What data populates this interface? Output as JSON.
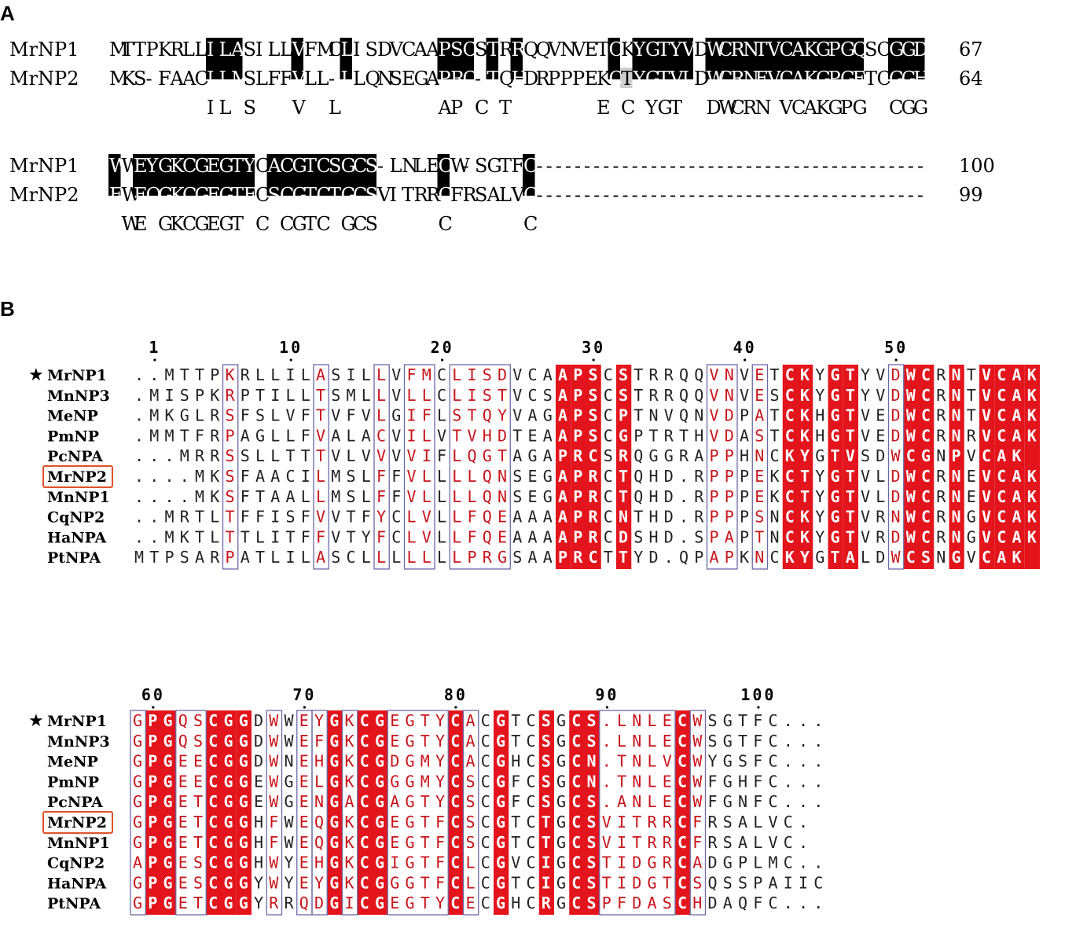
{
  "panel_a": {
    "label": "A",
    "blocks": [
      {
        "rows": [
          {
            "name": "MrNP1",
            "seq": "MTTPKRLLILASILLVFMCLISDVCAAPSCSTRRQQVNVETCKYGTYVDWCRNTVCAKGPGQSCGGD",
            "end": "67"
          },
          {
            "name": "MrNP2",
            "seq": "MKS-FAACILMSLFFVLL-LLQNSEGAPRC-TQHDRPPPEKCTYGTVLDWCRNEVCAKGPGETCGGH",
            "end": "64"
          }
        ],
        "consensus": "        IL S   V  L        AP C T       E C YGT  DWCRN VCAKGPG  CGG "
      },
      {
        "rows": [
          {
            "name": "MrNP1",
            "seq": "WWEYGKCGEGTYCACGTCSGCS-LNLECW-SGTFC",
            "tail": "-----------------------------------------",
            "end": "100"
          },
          {
            "name": "MrNP2",
            "seq": "FWEQGKCGEGTFCSCGTCTGCSVITRRCFRSALVC",
            "tail": "-----------------------------------------",
            "end": "99"
          }
        ],
        "consensus": " WE GKCGEGT C CGTC GCS     C      C"
      }
    ]
  },
  "panel_b": {
    "label": "B",
    "star": "★",
    "highlighted": "MrNP2",
    "blocks": [
      {
        "ruler": [
          {
            "label": "1",
            "col": 2
          },
          {
            "label": "10",
            "col": 11
          },
          {
            "label": "20",
            "col": 21
          },
          {
            "label": "30",
            "col": 31
          },
          {
            "label": "40",
            "col": 41
          },
          {
            "label": "50",
            "col": 51
          }
        ],
        "rows": [
          {
            "name": "MrNP1",
            "seq": "..MTTPKRLLILASILLVFMCLISDVCAAPSCSTRRQQVNVETCKYGTYVDWCRNTVCAK"
          },
          {
            "name": "MnNP3",
            "seq": ".MISPKRPTILLTSMLLVLLCLISTVCSAPSCSTRRQQVNVESCKYGTYVDWCRNTVCAK"
          },
          {
            "name": "MeNP",
            "seq": ".MKGLRSFSLVFTVFVLGIFLSTQYVAGAPSCPTNVQNVDPATCKHGTVEDWCRNTVCAK"
          },
          {
            "name": "PmNP",
            "seq": ".MMTFRPAGLLFVALACVILVTVHDTEAAPSCGPTRTHVDASTCKHGTVEDWCRNRVCAK"
          },
          {
            "name": "PcNPA",
            "seq": "...MRRSSLLTTTVLVVVVIFLQGTAGAPRCSRQGGRAPPHNCKYGTVSDWCGNPVCAK"
          },
          {
            "name": "MrNP2",
            "seq": "....MKSFAACILMSLFFVLLLLQNSEGAPRCTQHD.RPPPEKCTYGTVLDWCRNEVCAK"
          },
          {
            "name": "MnNP1",
            "seq": "....MKSFTAALLMSLFFVLLLLQNSEGAPRCTQHD.RPPPEKCTYGTVLDWCRNEVCAK"
          },
          {
            "name": "CqNP2",
            "seq": "..MRTLTFFISFVVTFYCLVLLFQEAAAAPRCNTHD.RPPPSNCKYGTVRNWCRNGVCAK"
          },
          {
            "name": "HaNPA",
            "seq": "..MKTLTTLITFFVTYFCLVLLFQEAAAAPRCDSHD.SPAPTNCKYGTVRDWCRNGVCAK"
          },
          {
            "name": "PtNPA",
            "seq": "MTPSARPATLILASCLLLLLLLPRGSAAPRCTTYD.QPAPKNCKYGTALDWCSNGVCAK"
          }
        ],
        "red_cols": [
          29,
          30,
          31,
          33,
          44,
          45,
          47,
          48,
          52,
          53,
          55,
          57,
          58,
          59,
          60
        ],
        "box_ranges": [
          [
            7,
            7
          ],
          [
            13,
            13
          ],
          [
            17,
            17
          ],
          [
            19,
            20
          ],
          [
            22,
            25
          ],
          [
            39,
            40
          ],
          [
            42,
            42
          ],
          [
            51,
            51
          ]
        ]
      },
      {
        "ruler": [
          {
            "label": "60",
            "col": 2
          },
          {
            "label": "70",
            "col": 12
          },
          {
            "label": "80",
            "col": 22
          },
          {
            "label": "90",
            "col": 32
          },
          {
            "label": "100",
            "col": 42
          }
        ],
        "rows": [
          {
            "name": "MrNP1",
            "seq": "GPGQSCGGDWWEYGKCGEGTYCACGTCSGCS.LNLECWSGTFC..."
          },
          {
            "name": "MnNP3",
            "seq": "GPGQSCGGDWWEFGKCGEGTYCACGTCSGCS.LNLECWSGTFC..."
          },
          {
            "name": "MeNP",
            "seq": "GPGEECGGDWNEHGKCGDGMYCACGHCSGCN.TNLVCWYGSFC..."
          },
          {
            "name": "PmNP",
            "seq": "GPGEECGGEWGELGKCGGGMYCSCGFCSGCN.TNLECWFGHFC..."
          },
          {
            "name": "PcNPA",
            "seq": "GPGETCGGEWGENGACGAGTYCSCGFCSGCS.ANLECWFGNFC..."
          },
          {
            "name": "MrNP2",
            "seq": "GPGETCGGHFWEQGKCGEGTFCSCGTCTGCSVITRRCFRSALVC."
          },
          {
            "name": "MnNP1",
            "seq": "GPGETCGGHFWEQGKCGEGTFCSCGTCTGCSVITRRCFRSALVC."
          },
          {
            "name": "CqNP2",
            "seq": "APGESCGGHWYEHGKCGIGTFCLCGVCIGCSTIDGRCADGPLMC.."
          },
          {
            "name": "HaNPA",
            "seq": "GPGESCGGYWYEYGKCGGGTFCLCGTCIGCSTIDGTCSQSSPAIIC"
          },
          {
            "name": "PtNPA",
            "seq": "GPGETCGGYRRQDGICGEGTYCECGHCRGCSPFDASCHDAQFC..."
          }
        ],
        "red_cols": [
          2,
          3,
          6,
          7,
          8,
          14,
          16,
          17,
          22,
          25,
          28,
          30,
          31,
          37
        ],
        "box_ranges": [
          [
            1,
            1
          ],
          [
            4,
            5
          ],
          [
            10,
            10
          ],
          [
            12,
            12
          ],
          [
            13,
            13
          ],
          [
            15,
            15
          ],
          [
            18,
            21
          ],
          [
            23,
            23
          ],
          [
            32,
            36
          ],
          [
            38,
            38
          ]
        ]
      }
    ]
  },
  "colors": {
    "black_block": "#000000",
    "red_block": "#e3141b",
    "red_text": "#c8141b",
    "box_stroke": "#6a6aa8",
    "highlight_box": "#e0502a"
  }
}
